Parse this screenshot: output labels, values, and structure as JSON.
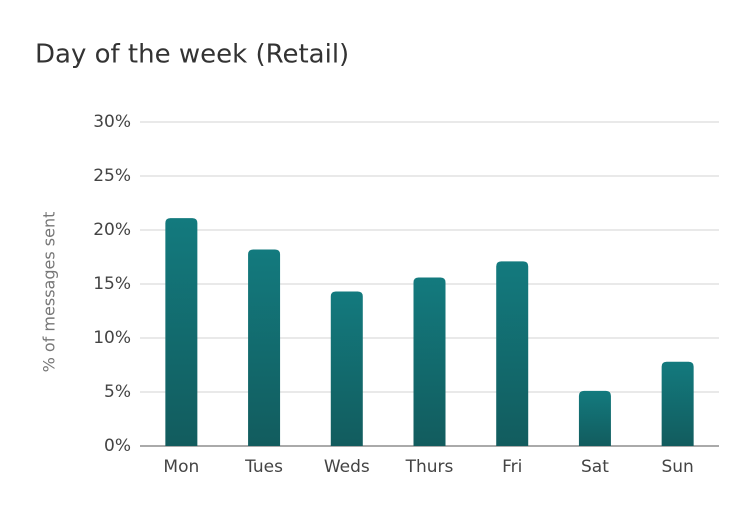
{
  "chart_data": {
    "type": "bar",
    "title": "Day of the week (Retail)",
    "y_label": "% of messages sent",
    "categories": [
      "Mon",
      "Tues",
      "Weds",
      "Thurs",
      "Fri",
      "Sat",
      "Sun"
    ],
    "values": [
      21.1,
      18.2,
      14.3,
      15.6,
      17.1,
      5.1,
      7.8
    ],
    "color": "#137a7e",
    "ylim": [
      0,
      30
    ],
    "yticks": [
      {
        "value": 0,
        "label": "0%"
      },
      {
        "value": 5,
        "label": "5%"
      },
      {
        "value": 10,
        "label": "10%"
      },
      {
        "value": 15,
        "label": "15%"
      },
      {
        "value": 20,
        "label": "20%"
      },
      {
        "value": 25,
        "label": "25%"
      },
      {
        "value": 30,
        "label": "30%"
      }
    ],
    "grid": true
  }
}
